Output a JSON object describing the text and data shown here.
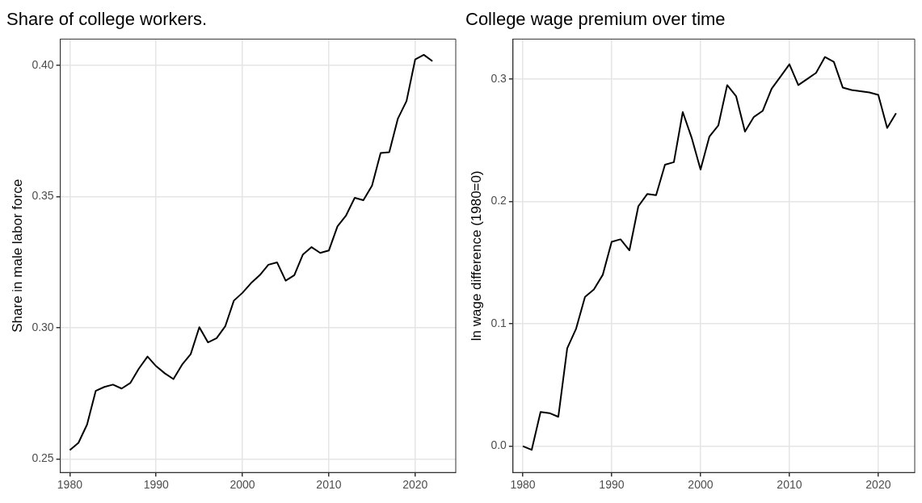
{
  "chart_data": [
    {
      "type": "line",
      "title": "Share of college workers.",
      "ylabel": "Share in male labor force",
      "grid": true,
      "legend": false,
      "marker": "none",
      "line_style": "solid",
      "x": [
        1980,
        1981,
        1982,
        1983,
        1984,
        1985,
        1986,
        1987,
        1988,
        1989,
        1990,
        1991,
        1992,
        1993,
        1994,
        1995,
        1996,
        1997,
        1998,
        1999,
        2000,
        2001,
        2002,
        2003,
        2004,
        2005,
        2006,
        2007,
        2008,
        2009,
        2010,
        2011,
        2012,
        2013,
        2014,
        2015,
        2016,
        2017,
        2018,
        2019,
        2020,
        2021,
        2022
      ],
      "series": [
        {
          "color": "#000000",
          "values": [
            0.2533,
            0.2561,
            0.2631,
            0.2759,
            0.2774,
            0.2783,
            0.2768,
            0.2789,
            0.2844,
            0.289,
            0.2853,
            0.2826,
            0.2804,
            0.2859,
            0.2899,
            0.3002,
            0.2944,
            0.296,
            0.3005,
            0.3103,
            0.3133,
            0.317,
            0.32,
            0.324,
            0.3249,
            0.3179,
            0.32,
            0.3279,
            0.3307,
            0.3285,
            0.3294,
            0.3386,
            0.3428,
            0.3495,
            0.3486,
            0.3541,
            0.3666,
            0.3669,
            0.3797,
            0.3864,
            0.4022,
            0.404,
            0.4016
          ]
        }
      ],
      "xlim": [
        1978.9,
        2024.7
      ],
      "xticks": [
        1980,
        1990,
        2000,
        2010,
        2020
      ],
      "ylim": [
        0.2448,
        0.41
      ],
      "yticks": [
        {
          "value": 0.25,
          "label": "0.25"
        },
        {
          "value": 0.3,
          "label": "0.30"
        },
        {
          "value": 0.35,
          "label": "0.35"
        },
        {
          "value": 0.4,
          "label": "0.40"
        }
      ]
    },
    {
      "type": "line",
      "title": "College wage premium over time",
      "ylabel": "ln wage difference (1980=0)",
      "grid": true,
      "legend": false,
      "marker": "none",
      "line_style": "solid",
      "x": [
        1980,
        1981,
        1982,
        1983,
        1984,
        1985,
        1986,
        1987,
        1988,
        1989,
        1990,
        1991,
        1992,
        1993,
        1994,
        1995,
        1996,
        1997,
        1998,
        1999,
        2000,
        2001,
        2002,
        2003,
        2004,
        2005,
        2006,
        2007,
        2008,
        2009,
        2010,
        2011,
        2012,
        2013,
        2014,
        2015,
        2016,
        2017,
        2018,
        2019,
        2020,
        2021,
        2022
      ],
      "series": [
        {
          "color": "#000000",
          "values": [
            0,
            -0.003,
            0.028,
            0.027,
            0.024,
            0.08,
            0.096,
            0.122,
            0.128,
            0.14,
            0.167,
            0.169,
            0.16,
            0.196,
            0.206,
            0.205,
            0.23,
            0.232,
            0.273,
            0.252,
            0.226,
            0.253,
            0.262,
            0.295,
            0.286,
            0.257,
            0.269,
            0.274,
            0.292,
            0.302,
            0.312,
            0.295,
            0.3,
            0.305,
            0.318,
            0.314,
            0.293,
            0.291,
            0.29,
            0.289,
            0.287,
            0.26,
            0.272
          ]
        }
      ],
      "xlim": [
        1978.9,
        2024.1
      ],
      "xticks": [
        1980,
        1990,
        2000,
        2010,
        2020
      ],
      "ylim": [
        -0.0215,
        0.3326
      ],
      "yticks": [
        {
          "value": 0,
          "label": "0.0"
        },
        {
          "value": 0.1,
          "label": "0.1"
        },
        {
          "value": 0.2,
          "label": "0.2"
        },
        {
          "value": 0.3,
          "label": "0.3"
        }
      ]
    }
  ]
}
